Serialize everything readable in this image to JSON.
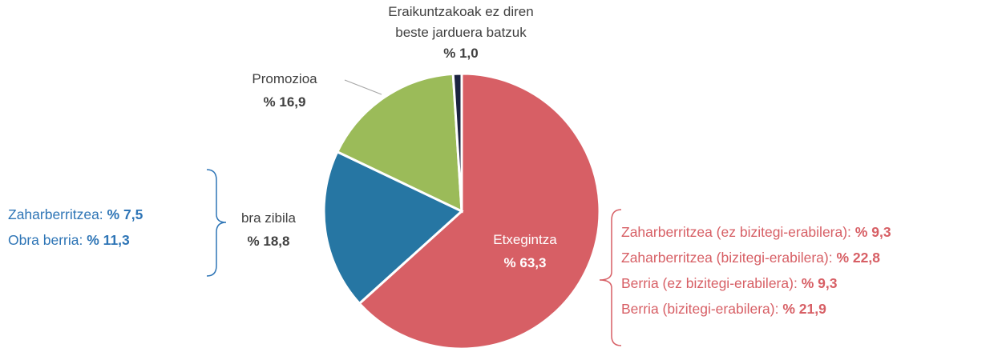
{
  "chart_data": {
    "type": "pie",
    "categories": [
      "Etxegintza",
      "bra zibila",
      "Promozioa",
      "Eraikuntzakoak ez diren beste jarduera batzuk"
    ],
    "values": [
      63.3,
      18.8,
      16.9,
      1.0
    ],
    "value_labels": [
      "% 63,3",
      "% 18,8",
      "% 16,9",
      "% 1,0"
    ],
    "colors": [
      "#d75f65",
      "#2676a3",
      "#9bbb59",
      "#1b2340"
    ],
    "annotations": [
      {
        "color": "#2e75b6",
        "items": [
          {
            "name": "Zaharberritzea:",
            "value": 7.5,
            "value_label": "% 7,5"
          },
          {
            "name": "Obra berria:",
            "value": 11.3,
            "value_label": "% 11,3"
          }
        ]
      },
      {
        "color": "#d75f65",
        "items": [
          {
            "name": "Zaharberritzea (ez bizitegi-erabilera):",
            "value": 9.3,
            "value_label": "% 9,3"
          },
          {
            "name": "Zaharberritzea (bizitegi-erabilera):",
            "value": 22.8,
            "value_label": "% 22,8"
          },
          {
            "name": "Berria (ez bizitegi-erabilera):",
            "value": 9.3,
            "value_label": "% 9,3"
          },
          {
            "name": "Berria (bizitegi-erabilera):",
            "value": 21.9,
            "value_label": "% 21,9"
          }
        ]
      }
    ]
  }
}
